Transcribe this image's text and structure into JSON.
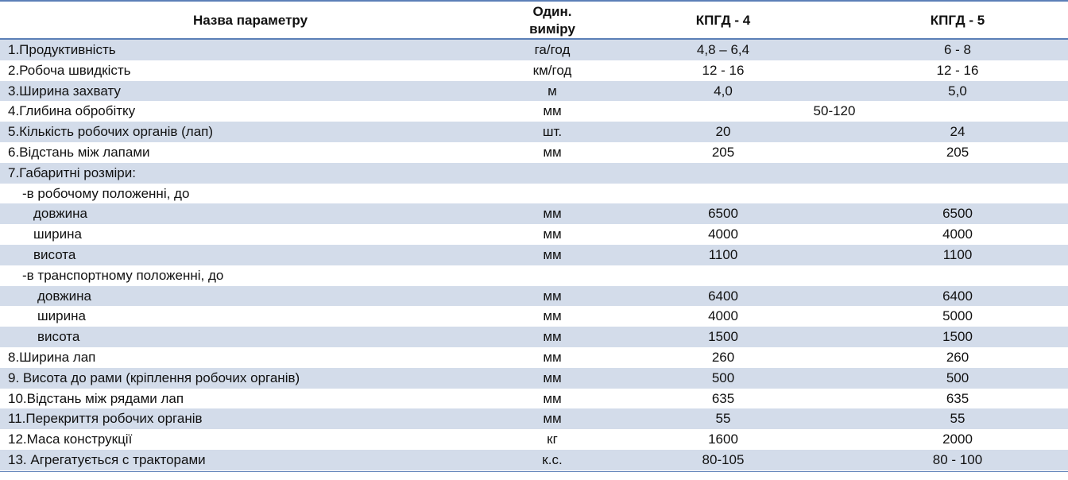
{
  "header": {
    "name": "Назва параметру",
    "unit_line1": "Один.",
    "unit_line2": "виміру",
    "model_a": "КПГД - 4",
    "model_b": "КПГД - 5"
  },
  "colors": {
    "shade": "#d3dcea",
    "rule": "#5b7fb7"
  },
  "rows": [
    {
      "name": "1.Продуктивність",
      "unit": "га/год",
      "a": "4,8 – 6,4",
      "b": "6 - 8"
    },
    {
      "name": "2.Робоча швидкість",
      "unit": "км/год",
      "a": "12 - 16",
      "b": "12 - 16"
    },
    {
      "name": "3.Ширина захвату",
      "unit": "м",
      "a": "4,0",
      "b": "5,0"
    },
    {
      "name": "4.Глибина обробітку",
      "unit": "мм",
      "span": "50-120"
    },
    {
      "name": "5.Кількість робочих органів (лап)",
      "unit": "шт.",
      "a": "20",
      "b": "24"
    },
    {
      "name": "6.Відстань між лапами",
      "unit": "мм",
      "a": "205",
      "b": "205"
    },
    {
      "name": "7.Габаритні розміри:",
      "unit": "",
      "a": "",
      "b": ""
    },
    {
      "name": "-в робочому положенні, до",
      "unit": "",
      "a": "",
      "b": ""
    },
    {
      "name": "довжина",
      "unit": "мм",
      "a": "6500",
      "b": "6500"
    },
    {
      "name": "ширина",
      "unit": "мм",
      "a": "4000",
      "b": "4000"
    },
    {
      "name": "висота",
      "unit": "мм",
      "a": "1100",
      "b": "1100"
    },
    {
      "name": "-в транспортному положенні, до",
      "unit": "",
      "a": "",
      "b": ""
    },
    {
      "name": "довжина",
      "unit": "мм",
      "a": "6400",
      "b": "6400"
    },
    {
      "name": "ширина",
      "unit": "мм",
      "a": "4000",
      "b": "5000"
    },
    {
      "name": "висота",
      "unit": "мм",
      "a": "1500",
      "b": "1500"
    },
    {
      "name": "8.Ширина лап",
      "unit": "мм",
      "a": "260",
      "b": "260"
    },
    {
      "name": "9. Висота до рами (кріплення робочих органів)",
      "unit": "мм",
      "a": "500",
      "b": "500"
    },
    {
      "name": "10.Відстань між рядами лап",
      "unit": "мм",
      "a": "635",
      "b": "635"
    },
    {
      "name": "11.Перекриття робочих органів",
      "unit": "мм",
      "a": "55",
      "b": "55"
    },
    {
      "name": "12.Маса конструкції",
      "unit": "кг",
      "a": "1600",
      "b": "2000"
    },
    {
      "name": "13. Агрегатується с тракторами",
      "unit": "к.с.",
      "a": "80-105",
      "b": "80 - 100"
    }
  ]
}
